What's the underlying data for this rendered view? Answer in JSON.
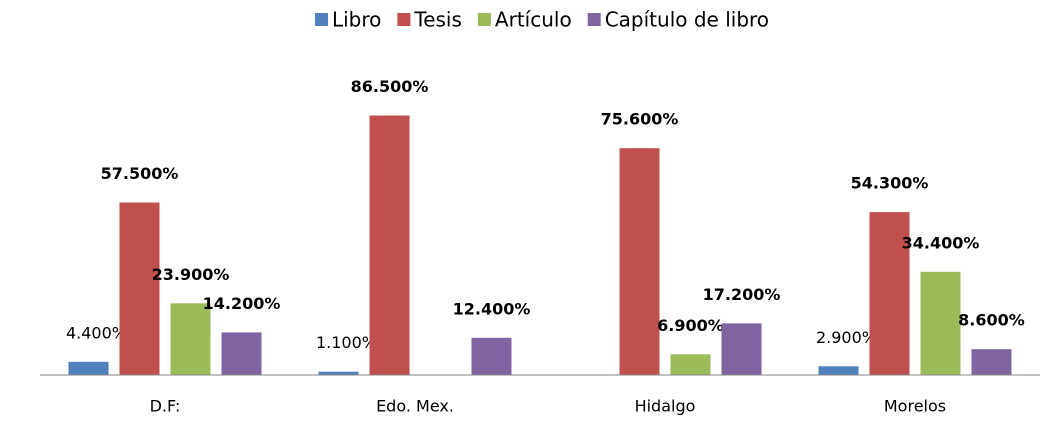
{
  "chart_data": {
    "type": "bar",
    "categories": [
      "D.F:",
      "Edo. Mex.",
      "Hidalgo",
      "Morelos"
    ],
    "series": [
      {
        "name": "Libro",
        "color": "#4f81bd",
        "values": [
          4.4,
          1.1,
          null,
          2.9
        ],
        "value_labels": [
          "4.400%",
          "1.100%",
          null,
          "2.900%"
        ]
      },
      {
        "name": "Tesis",
        "color": "#c0504d",
        "values": [
          57.5,
          86.5,
          75.6,
          54.3
        ],
        "value_labels": [
          "57.500%",
          "86.500%",
          "75.600%",
          "54.300%"
        ]
      },
      {
        "name": "Artículo",
        "color": "#9bbb59",
        "values": [
          23.9,
          null,
          6.9,
          34.4
        ],
        "value_labels": [
          "23.900%",
          null,
          "6.900%",
          "34.400%"
        ]
      },
      {
        "name": "Capítulo de libro",
        "color": "#8064a2",
        "values": [
          14.2,
          12.4,
          17.2,
          8.6
        ],
        "value_labels": [
          "14.200%",
          "12.400%",
          "17.200%",
          "8.600%"
        ]
      }
    ],
    "legend": "top"
  }
}
